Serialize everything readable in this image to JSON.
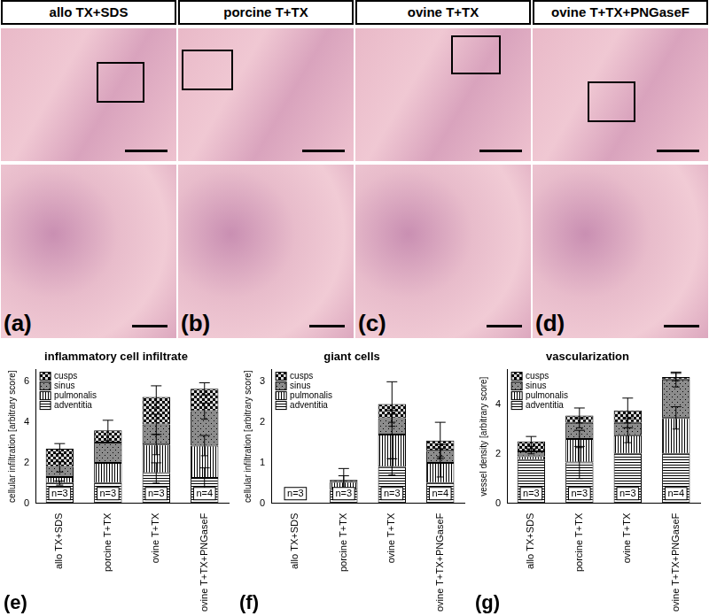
{
  "images": [
    {
      "title": "allo TX+SDS",
      "label": "(a)"
    },
    {
      "title": "porcine T+TX",
      "label": "(b)"
    },
    {
      "title": "ovine T+TX",
      "label": "(c)"
    },
    {
      "title": "ovine T+TX+PNGaseF",
      "label": "(d)"
    }
  ],
  "chart_data": [
    {
      "type": "bar",
      "stacked": true,
      "panel_label": "(e)",
      "title": "inflammatory cell infiltrate",
      "ylabel": "cellular infiltration [arbitrary score]",
      "categories": [
        "allo TX+SDS",
        "porcine T+TX",
        "ovine T+TX",
        "ovine T+TX+PNGaseF"
      ],
      "annotations": [
        "n=3",
        "n=3",
        "n=3",
        "n=4"
      ],
      "series": [
        {
          "name": "adventitia",
          "color": "#000000",
          "values": [
            1.0,
            1.0,
            1.5,
            1.25
          ],
          "errors": [
            0.1,
            0,
            0.5,
            0.5
          ]
        },
        {
          "name": "pulmonalis",
          "color": "#000000",
          "values": [
            0.3,
            1.0,
            1.4,
            1.6
          ],
          "errors": [
            0,
            0,
            0.5,
            0.5
          ]
        },
        {
          "name": "sinus",
          "color": "#000000",
          "values": [
            0.5,
            1.0,
            1.0,
            1.7
          ],
          "errors": [
            0.25,
            0,
            0.5,
            0.4
          ]
        },
        {
          "name": "cusps",
          "color": "#000000",
          "values": [
            0.9,
            0.6,
            1.35,
            1.1
          ],
          "errors": [
            0.25,
            0.5,
            0.55,
            0.3
          ]
        }
      ],
      "ylim": [
        0,
        6.6
      ],
      "yticks": [
        0,
        2,
        4,
        6
      ],
      "grid": false,
      "legend": "upper left"
    },
    {
      "type": "bar",
      "stacked": true,
      "panel_label": "(f)",
      "title": "giant cells",
      "ylabel": "cellular infiltration [arbitrary score]",
      "categories": [
        "allo TX+SDS",
        "porcine T+TX",
        "ovine T+TX",
        "ovine T+TX+PNGaseF"
      ],
      "annotations": [
        "n=3",
        "n=3",
        "n=3",
        "n=4"
      ],
      "series": [
        {
          "name": "adventitia",
          "color": "#000000",
          "values": [
            0,
            0.33,
            0.9,
            0.5
          ],
          "errors": [
            0,
            0,
            0.2,
            0
          ]
        },
        {
          "name": "pulmonalis",
          "color": "#000000",
          "values": [
            0,
            0.2,
            0.8,
            0.5
          ],
          "errors": [
            0,
            0.15,
            0.6,
            0.35
          ]
        },
        {
          "name": "sinus",
          "color": "#000000",
          "values": [
            0,
            0,
            0.4,
            0.3
          ],
          "errors": [
            0,
            0,
            0.1,
            0.15
          ]
        },
        {
          "name": "cusps",
          "color": "#000000",
          "values": [
            0,
            0.05,
            0.35,
            0.25
          ],
          "errors": [
            0,
            0.28,
            0.55,
            0.45
          ]
        }
      ],
      "ylim": [
        0,
        3.3
      ],
      "yticks": [
        0,
        1,
        2,
        3
      ],
      "grid": false,
      "legend": "upper left"
    },
    {
      "type": "bar",
      "stacked": true,
      "panel_label": "(g)",
      "title": "vascularization",
      "ylabel": "vessel density [arbitrary score]",
      "categories": [
        "allo TX+SDS",
        "porcine T+TX",
        "ovine T+TX",
        "ovine T+TX+PNGaseF"
      ],
      "annotations": [
        "n=3",
        "n=3",
        "n=3",
        "n=4"
      ],
      "series": [
        {
          "name": "adventitia",
          "color": "#000000",
          "values": [
            1.75,
            1.65,
            2.0,
            2.0
          ],
          "errors": [
            0,
            0.65,
            0,
            0
          ]
        },
        {
          "name": "pulmonalis",
          "color": "#000000",
          "values": [
            0.15,
            0.95,
            0.75,
            1.45
          ],
          "errors": [
            0,
            0.35,
            0.3,
            0.45
          ]
        },
        {
          "name": "sinus",
          "color": "#000000",
          "values": [
            0.2,
            0.65,
            0.5,
            1.55
          ],
          "errors": [
            0.1,
            0.2,
            0.2,
            0.3
          ]
        },
        {
          "name": "cusps",
          "color": "#000000",
          "values": [
            0.4,
            0.3,
            0.5,
            0.1
          ],
          "errors": [
            0.2,
            0.3,
            0.5,
            0.15
          ]
        }
      ],
      "ylim": [
        0,
        5.4
      ],
      "yticks": [
        0,
        2,
        4
      ],
      "grid": false,
      "legend": "upper left"
    }
  ]
}
